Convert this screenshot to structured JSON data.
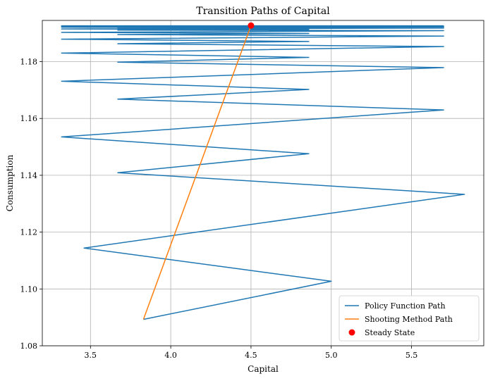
{
  "chart_data": {
    "type": "line",
    "title": "Transition Paths of Capital",
    "xlabel": "Capital",
    "ylabel": "Consumption",
    "xlim": [
      3.2,
      5.95
    ],
    "ylim": [
      1.08,
      1.1945
    ],
    "xticks": [
      3.5,
      4.0,
      4.5,
      5.0,
      5.5
    ],
    "xtick_labels": [
      "3.5",
      "4.0",
      "4.5",
      "5.0",
      "5.5"
    ],
    "yticks": [
      1.08,
      1.1,
      1.12,
      1.14,
      1.16,
      1.18
    ],
    "ytick_labels": [
      "1.08",
      "1.10",
      "1.12",
      "1.14",
      "1.16",
      "1.18"
    ],
    "grid": true,
    "legend_position": "bottom-right",
    "series": [
      {
        "name": "Policy Function Path",
        "kind": "line",
        "color": "#1f77b4",
        "x": [
          3.83,
          5.0,
          3.46,
          5.83,
          3.67,
          4.86,
          3.32,
          5.7,
          3.67,
          4.86,
          3.32,
          5.7,
          3.67,
          4.86,
          3.32,
          5.7,
          3.67,
          4.86,
          3.32,
          5.7,
          3.67,
          4.86,
          3.32,
          5.7,
          3.67,
          4.86,
          3.32,
          5.7,
          3.67,
          4.86,
          3.32,
          5.7,
          3.32,
          5.7,
          3.32,
          5.7,
          3.32,
          5.7
        ],
        "y": [
          1.0893,
          1.1027,
          1.1144,
          1.1333,
          1.1409,
          1.1476,
          1.1535,
          1.163,
          1.1668,
          1.1702,
          1.1731,
          1.1779,
          1.1798,
          1.1815,
          1.183,
          1.1853,
          1.1863,
          1.1871,
          1.1879,
          1.189,
          1.1895,
          1.1899,
          1.1903,
          1.1909,
          1.1911,
          1.1913,
          1.1915,
          1.1918,
          1.1919,
          1.192,
          1.1921,
          1.1922,
          1.1923,
          1.1924,
          1.1925,
          1.1925,
          1.1926,
          1.1926
        ]
      },
      {
        "name": "Shooting Method Path",
        "kind": "line",
        "color": "#ff7f0e",
        "x": [
          3.83,
          4.5
        ],
        "y": [
          1.0893,
          1.1927
        ]
      },
      {
        "name": "Steady State",
        "kind": "marker",
        "color": "#ff0000",
        "x": [
          4.5
        ],
        "y": [
          1.1927
        ]
      }
    ]
  }
}
